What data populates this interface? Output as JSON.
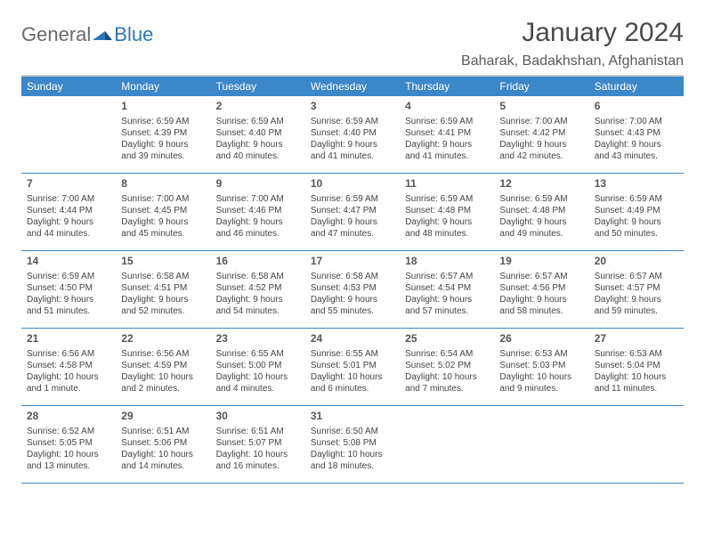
{
  "brand": {
    "part1": "General",
    "part2": "Blue"
  },
  "title": "January 2024",
  "location": "Baharak, Badakhshan, Afghanistan",
  "colors": {
    "header_bg": "#3b87c8",
    "header_text": "#ffffff",
    "border_top": "#c9c9c9",
    "week_divider": "#3b87c8",
    "body_text": "#444444",
    "daynum_text": "#555555",
    "title_text": "#4a4a4a",
    "location_text": "#5a5a5a",
    "logo_gray": "#6a6a6a",
    "logo_blue": "#2e77b8",
    "background": "#ffffff"
  },
  "typography": {
    "title_fontsize": 30,
    "location_fontsize": 16,
    "dayheader_fontsize": 12,
    "daynum_fontsize": 12,
    "cell_fontsize": 10,
    "logo_fontsize": 22
  },
  "day_names": [
    "Sunday",
    "Monday",
    "Tuesday",
    "Wednesday",
    "Thursday",
    "Friday",
    "Saturday"
  ],
  "weeks": [
    [
      null,
      {
        "n": "1",
        "sr": "Sunrise: 6:59 AM",
        "ss": "Sunset: 4:39 PM",
        "dl": "Daylight: 9 hours and 39 minutes."
      },
      {
        "n": "2",
        "sr": "Sunrise: 6:59 AM",
        "ss": "Sunset: 4:40 PM",
        "dl": "Daylight: 9 hours and 40 minutes."
      },
      {
        "n": "3",
        "sr": "Sunrise: 6:59 AM",
        "ss": "Sunset: 4:40 PM",
        "dl": "Daylight: 9 hours and 41 minutes."
      },
      {
        "n": "4",
        "sr": "Sunrise: 6:59 AM",
        "ss": "Sunset: 4:41 PM",
        "dl": "Daylight: 9 hours and 41 minutes."
      },
      {
        "n": "5",
        "sr": "Sunrise: 7:00 AM",
        "ss": "Sunset: 4:42 PM",
        "dl": "Daylight: 9 hours and 42 minutes."
      },
      {
        "n": "6",
        "sr": "Sunrise: 7:00 AM",
        "ss": "Sunset: 4:43 PM",
        "dl": "Daylight: 9 hours and 43 minutes."
      }
    ],
    [
      {
        "n": "7",
        "sr": "Sunrise: 7:00 AM",
        "ss": "Sunset: 4:44 PM",
        "dl": "Daylight: 9 hours and 44 minutes."
      },
      {
        "n": "8",
        "sr": "Sunrise: 7:00 AM",
        "ss": "Sunset: 4:45 PM",
        "dl": "Daylight: 9 hours and 45 minutes."
      },
      {
        "n": "9",
        "sr": "Sunrise: 7:00 AM",
        "ss": "Sunset: 4:46 PM",
        "dl": "Daylight: 9 hours and 46 minutes."
      },
      {
        "n": "10",
        "sr": "Sunrise: 6:59 AM",
        "ss": "Sunset: 4:47 PM",
        "dl": "Daylight: 9 hours and 47 minutes."
      },
      {
        "n": "11",
        "sr": "Sunrise: 6:59 AM",
        "ss": "Sunset: 4:48 PM",
        "dl": "Daylight: 9 hours and 48 minutes."
      },
      {
        "n": "12",
        "sr": "Sunrise: 6:59 AM",
        "ss": "Sunset: 4:48 PM",
        "dl": "Daylight: 9 hours and 49 minutes."
      },
      {
        "n": "13",
        "sr": "Sunrise: 6:59 AM",
        "ss": "Sunset: 4:49 PM",
        "dl": "Daylight: 9 hours and 50 minutes."
      }
    ],
    [
      {
        "n": "14",
        "sr": "Sunrise: 6:59 AM",
        "ss": "Sunset: 4:50 PM",
        "dl": "Daylight: 9 hours and 51 minutes."
      },
      {
        "n": "15",
        "sr": "Sunrise: 6:58 AM",
        "ss": "Sunset: 4:51 PM",
        "dl": "Daylight: 9 hours and 52 minutes."
      },
      {
        "n": "16",
        "sr": "Sunrise: 6:58 AM",
        "ss": "Sunset: 4:52 PM",
        "dl": "Daylight: 9 hours and 54 minutes."
      },
      {
        "n": "17",
        "sr": "Sunrise: 6:58 AM",
        "ss": "Sunset: 4:53 PM",
        "dl": "Daylight: 9 hours and 55 minutes."
      },
      {
        "n": "18",
        "sr": "Sunrise: 6:57 AM",
        "ss": "Sunset: 4:54 PM",
        "dl": "Daylight: 9 hours and 57 minutes."
      },
      {
        "n": "19",
        "sr": "Sunrise: 6:57 AM",
        "ss": "Sunset: 4:56 PM",
        "dl": "Daylight: 9 hours and 58 minutes."
      },
      {
        "n": "20",
        "sr": "Sunrise: 6:57 AM",
        "ss": "Sunset: 4:57 PM",
        "dl": "Daylight: 9 hours and 59 minutes."
      }
    ],
    [
      {
        "n": "21",
        "sr": "Sunrise: 6:56 AM",
        "ss": "Sunset: 4:58 PM",
        "dl": "Daylight: 10 hours and 1 minute."
      },
      {
        "n": "22",
        "sr": "Sunrise: 6:56 AM",
        "ss": "Sunset: 4:59 PM",
        "dl": "Daylight: 10 hours and 2 minutes."
      },
      {
        "n": "23",
        "sr": "Sunrise: 6:55 AM",
        "ss": "Sunset: 5:00 PM",
        "dl": "Daylight: 10 hours and 4 minutes."
      },
      {
        "n": "24",
        "sr": "Sunrise: 6:55 AM",
        "ss": "Sunset: 5:01 PM",
        "dl": "Daylight: 10 hours and 6 minutes."
      },
      {
        "n": "25",
        "sr": "Sunrise: 6:54 AM",
        "ss": "Sunset: 5:02 PM",
        "dl": "Daylight: 10 hours and 7 minutes."
      },
      {
        "n": "26",
        "sr": "Sunrise: 6:53 AM",
        "ss": "Sunset: 5:03 PM",
        "dl": "Daylight: 10 hours and 9 minutes."
      },
      {
        "n": "27",
        "sr": "Sunrise: 6:53 AM",
        "ss": "Sunset: 5:04 PM",
        "dl": "Daylight: 10 hours and 11 minutes."
      }
    ],
    [
      {
        "n": "28",
        "sr": "Sunrise: 6:52 AM",
        "ss": "Sunset: 5:05 PM",
        "dl": "Daylight: 10 hours and 13 minutes."
      },
      {
        "n": "29",
        "sr": "Sunrise: 6:51 AM",
        "ss": "Sunset: 5:06 PM",
        "dl": "Daylight: 10 hours and 14 minutes."
      },
      {
        "n": "30",
        "sr": "Sunrise: 6:51 AM",
        "ss": "Sunset: 5:07 PM",
        "dl": "Daylight: 10 hours and 16 minutes."
      },
      {
        "n": "31",
        "sr": "Sunrise: 6:50 AM",
        "ss": "Sunset: 5:08 PM",
        "dl": "Daylight: 10 hours and 18 minutes."
      },
      null,
      null,
      null
    ]
  ]
}
